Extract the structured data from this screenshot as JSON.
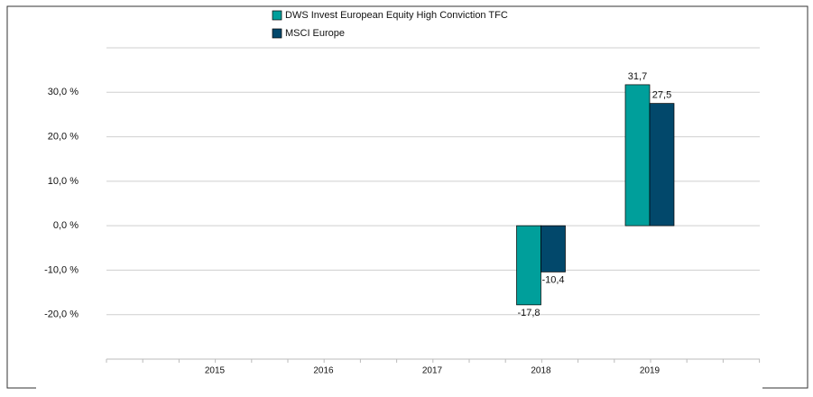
{
  "chart_data": {
    "type": "bar",
    "categories": [
      "2015",
      "2016",
      "2017",
      "2018",
      "2019"
    ],
    "series": [
      {
        "name": "DWS Invest European Equity High Conviction  TFC",
        "color": "#009f9b",
        "values": [
          null,
          null,
          null,
          -17.8,
          31.7
        ],
        "value_labels": [
          null,
          null,
          null,
          "-17,8",
          "31,7"
        ]
      },
      {
        "name": "MSCI Europe",
        "color": "#02486b",
        "values": [
          null,
          null,
          null,
          -10.4,
          27.5
        ],
        "value_labels": [
          null,
          null,
          null,
          "-10,4",
          "27,5"
        ]
      }
    ],
    "ylim": [
      -30,
      40
    ],
    "yticks": [
      {
        "value": -20,
        "label": "-20,0 %"
      },
      {
        "value": -10,
        "label": "-10,0 %"
      },
      {
        "value": 0,
        "label": "0,0 %"
      },
      {
        "value": 10,
        "label": "10,0 %"
      },
      {
        "value": 20,
        "label": "20,0 %"
      },
      {
        "value": 30,
        "label": "30,0 %"
      }
    ],
    "grid": true,
    "legend": "top"
  }
}
